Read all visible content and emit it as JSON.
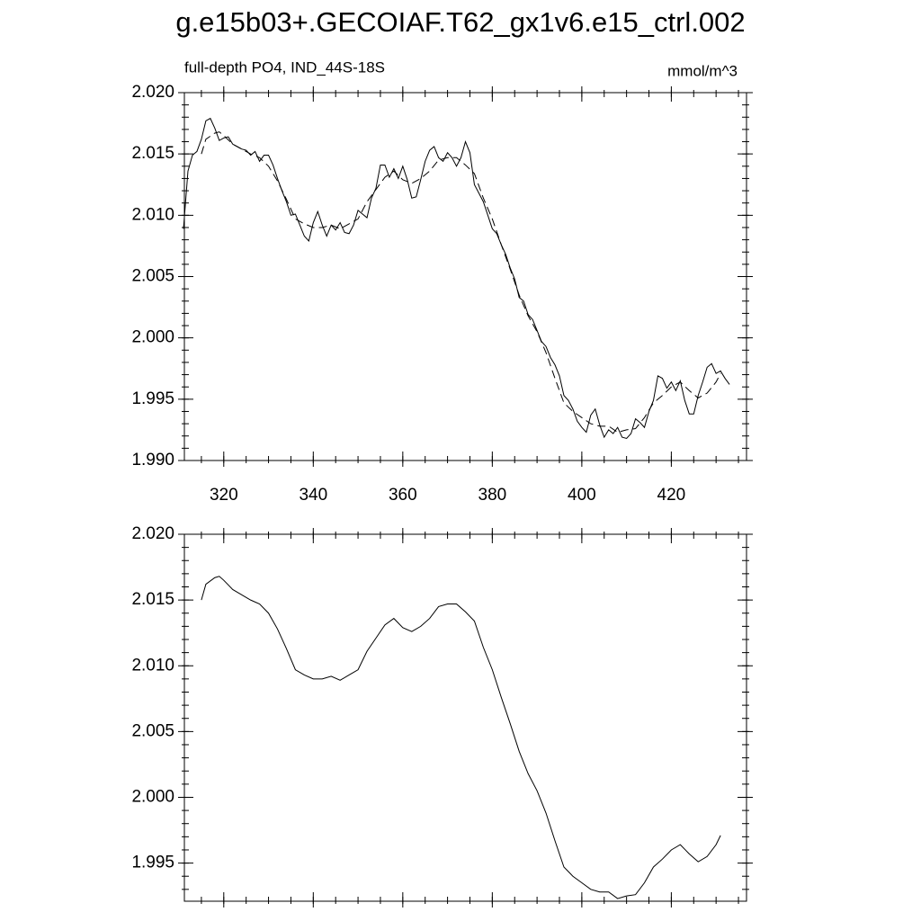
{
  "chart_data": [
    {
      "type": "line",
      "title": "g.e15b03+.GECOIAF.T62_gx1v6.e15_ctrl.002",
      "subtitle": "full-depth PO4, IND_44S-18S",
      "units": "mmol/m^3",
      "xlim": [
        311.2,
        436.8
      ],
      "xticks": [
        320,
        340,
        360,
        380,
        400,
        420
      ],
      "ylim": [
        1.99,
        2.02
      ],
      "yticks": [
        {
          "value": 1.99,
          "label": "1.990"
        },
        1.995,
        {
          "value": 2.0,
          "label": "2.000"
        },
        2.005,
        {
          "value": 2.01,
          "label": "2.010"
        },
        2.015,
        {
          "value": 2.02,
          "label": "2.020"
        }
      ],
      "series": [
        {
          "color": "#000000",
          "dash": false,
          "x": [
            311,
            312,
            313,
            314,
            315,
            316,
            317,
            318,
            319,
            320,
            321,
            322,
            323,
            324,
            325,
            326,
            327,
            328,
            329,
            330,
            331,
            332,
            333,
            334,
            335,
            336,
            337,
            338,
            339,
            340,
            341,
            342,
            343,
            344,
            345,
            346,
            347,
            348,
            349,
            350,
            351,
            352,
            353,
            354,
            355,
            356,
            357,
            358,
            359,
            360,
            361,
            362,
            363,
            364,
            365,
            366,
            367,
            368,
            369,
            370,
            371,
            372,
            373,
            374,
            375,
            376,
            377,
            378,
            379,
            380,
            381,
            382,
            383,
            384,
            385,
            386,
            387,
            388,
            389,
            390,
            391,
            392,
            393,
            394,
            395,
            396,
            397,
            398,
            399,
            400,
            401,
            402,
            403,
            404,
            405,
            406,
            407,
            408,
            409,
            410,
            411,
            412,
            413,
            414,
            415,
            416,
            417,
            418,
            419,
            420,
            421,
            422,
            423,
            424,
            425,
            426,
            427,
            428,
            429,
            430,
            431,
            432,
            433
          ],
          "values": [
            2.0089,
            2.0136,
            2.0149,
            2.0152,
            2.0162,
            2.0177,
            2.0179,
            2.0171,
            2.0161,
            2.0163,
            2.0164,
            2.0158,
            2.0156,
            2.0154,
            2.0153,
            2.0149,
            2.0152,
            2.0144,
            2.0149,
            2.0149,
            2.0141,
            2.013,
            2.012,
            2.0111,
            2.01,
            2.0101,
            2.0092,
            2.0083,
            2.0079,
            2.0094,
            2.0103,
            2.0092,
            2.0083,
            2.0092,
            2.0088,
            2.0094,
            2.0086,
            2.0085,
            2.0092,
            2.0104,
            2.0101,
            2.0098,
            2.0114,
            2.0122,
            2.0141,
            2.0141,
            2.0131,
            2.0138,
            2.013,
            2.014,
            2.0129,
            2.0114,
            2.0115,
            2.0129,
            2.0144,
            2.0153,
            2.0156,
            2.0147,
            2.0144,
            2.0151,
            2.0147,
            2.014,
            2.0147,
            2.016,
            2.0151,
            2.0125,
            2.0118,
            2.0111,
            2.01,
            2.0089,
            2.0085,
            2.0076,
            2.0068,
            2.0057,
            2.0048,
            2.0033,
            2.003,
            2.0019,
            2.0015,
            2.0006,
            1.9997,
            1.9993,
            1.9984,
            1.9978,
            1.9969,
            1.9953,
            1.9949,
            1.9942,
            1.9932,
            1.9927,
            1.9923,
            1.9937,
            1.9942,
            1.9929,
            1.9919,
            1.9925,
            1.9922,
            1.9927,
            1.9919,
            1.9918,
            1.9922,
            1.9934,
            1.9931,
            1.9927,
            1.994,
            1.9949,
            1.9969,
            1.9967,
            1.9959,
            1.9964,
            1.9957,
            1.9965,
            1.9949,
            1.9938,
            1.9938,
            1.9953,
            1.9964,
            1.9976,
            1.9979,
            1.9971,
            1.9973,
            1.9967,
            1.9962
          ]
        },
        {
          "color": "#000000",
          "dash": true,
          "x": [
            315,
            316,
            318,
            319,
            320,
            322,
            324,
            326,
            328,
            330,
            332,
            334,
            336,
            338,
            340,
            342,
            344,
            346,
            348,
            350,
            352,
            354,
            356,
            358,
            360,
            362,
            364,
            366,
            368,
            370,
            372,
            374,
            376,
            378,
            380,
            382,
            384,
            386,
            388,
            390,
            392,
            394,
            396,
            398,
            400,
            402,
            404,
            406,
            408,
            410,
            412,
            414,
            416,
            418,
            420,
            422,
            424,
            426,
            428,
            430,
            431
          ],
          "values": [
            2.015,
            2.0162,
            2.0167,
            2.0168,
            2.0165,
            2.0158,
            2.0154,
            2.015,
            2.0147,
            2.014,
            2.0128,
            2.0113,
            2.0097,
            2.0093,
            2.009,
            2.009,
            2.0092,
            2.0089,
            2.0093,
            2.0097,
            2.0111,
            2.0121,
            2.0131,
            2.0136,
            2.0129,
            2.0126,
            2.013,
            2.0136,
            2.0145,
            2.0147,
            2.0147,
            2.0141,
            2.0134,
            2.0114,
            2.0097,
            2.0076,
            2.0056,
            2.0035,
            2.0018,
            2.0005,
            1.9988,
            1.9967,
            1.9947,
            1.994,
            1.9935,
            1.993,
            1.9928,
            1.9928,
            1.9923,
            1.9925,
            1.9926,
            1.9935,
            1.9947,
            1.9953,
            1.996,
            1.9964,
            1.9957,
            1.9951,
            1.9955,
            1.9964,
            1.9971
          ]
        }
      ]
    },
    {
      "type": "line",
      "xlim": [
        311.2,
        436.8
      ],
      "xticks": [
        320,
        340,
        360,
        380,
        400,
        420
      ],
      "xtick_labels": false,
      "ylim": [
        1.9921,
        2.02
      ],
      "yticks": [
        1.995,
        {
          "value": 2.0,
          "label": "2.000"
        },
        2.005,
        {
          "value": 2.01,
          "label": "2.010"
        },
        2.015,
        {
          "value": 2.02,
          "label": "2.020"
        }
      ],
      "series": [
        {
          "color": "#000000",
          "dash": false,
          "x": [
            315,
            316,
            318,
            319,
            320,
            322,
            324,
            326,
            328,
            330,
            332,
            334,
            336,
            338,
            340,
            342,
            344,
            346,
            348,
            350,
            352,
            354,
            356,
            358,
            360,
            362,
            364,
            366,
            368,
            370,
            372,
            374,
            376,
            378,
            380,
            382,
            384,
            386,
            388,
            390,
            392,
            394,
            396,
            398,
            400,
            402,
            404,
            406,
            408,
            410,
            412,
            414,
            416,
            418,
            420,
            422,
            424,
            426,
            428,
            430,
            431
          ],
          "values": [
            2.015,
            2.0162,
            2.0167,
            2.0168,
            2.0165,
            2.0158,
            2.0154,
            2.015,
            2.0147,
            2.014,
            2.0128,
            2.0113,
            2.0097,
            2.0093,
            2.009,
            2.009,
            2.0092,
            2.0089,
            2.0093,
            2.0097,
            2.0111,
            2.0121,
            2.0131,
            2.0136,
            2.0129,
            2.0126,
            2.013,
            2.0136,
            2.0145,
            2.0147,
            2.0147,
            2.0141,
            2.0134,
            2.0114,
            2.0097,
            2.0076,
            2.0056,
            2.0035,
            2.0018,
            2.0005,
            1.9988,
            1.9967,
            1.9947,
            1.994,
            1.9935,
            1.993,
            1.9928,
            1.9928,
            1.9923,
            1.9925,
            1.9926,
            1.9935,
            1.9947,
            1.9953,
            1.996,
            1.9964,
            1.9957,
            1.9951,
            1.9955,
            1.9964,
            1.9971
          ]
        }
      ]
    }
  ]
}
